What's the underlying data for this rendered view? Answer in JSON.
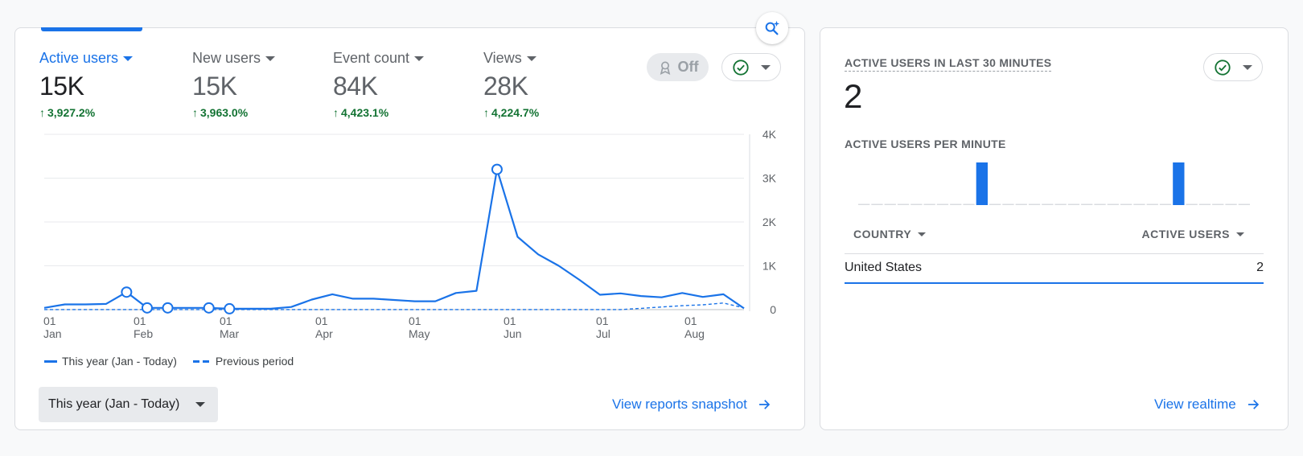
{
  "metrics": [
    {
      "label": "Active users",
      "value": "15K",
      "change": "3,927.2%",
      "active": true
    },
    {
      "label": "New users",
      "value": "15K",
      "change": "3,963.0%",
      "active": false
    },
    {
      "label": "Event count",
      "value": "84K",
      "change": "4,423.1%",
      "active": false
    },
    {
      "label": "Views",
      "value": "28K",
      "change": "4,224.7%",
      "active": false
    }
  ],
  "controls": {
    "off_label": "Off",
    "date_range": "This year (Jan - Today)",
    "snapshot_link": "View reports snapshot"
  },
  "chart_data": {
    "type": "line",
    "x_tick_labels": [
      {
        "day": "01",
        "month": "Jan"
      },
      {
        "day": "01",
        "month": "Feb"
      },
      {
        "day": "01",
        "month": "Mar"
      },
      {
        "day": "01",
        "month": "Apr"
      },
      {
        "day": "01",
        "month": "May"
      },
      {
        "day": "01",
        "month": "Jun"
      },
      {
        "day": "01",
        "month": "Jul"
      },
      {
        "day": "01",
        "month": "Aug"
      }
    ],
    "y_tick_labels": [
      "0",
      "1K",
      "2K",
      "3K",
      "4K"
    ],
    "ylim": [
      0,
      4000
    ],
    "series": [
      {
        "name": "This year (Jan - Today)",
        "style": "solid",
        "values": [
          40,
          120,
          120,
          130,
          400,
          40,
          40,
          40,
          40,
          20,
          20,
          20,
          60,
          230,
          350,
          250,
          250,
          220,
          190,
          190,
          380,
          430,
          3200,
          1660,
          1260,
          1000,
          680,
          340,
          370,
          310,
          280,
          380,
          290,
          350,
          30
        ]
      },
      {
        "name": "Previous period",
        "style": "dashed",
        "values": [
          2,
          2,
          2,
          2,
          2,
          2,
          2,
          2,
          2,
          2,
          2,
          2,
          2,
          2,
          2,
          2,
          2,
          2,
          2,
          2,
          2,
          2,
          2,
          2,
          2,
          2,
          2,
          2,
          2,
          30,
          60,
          90,
          110,
          150,
          40
        ]
      }
    ],
    "markers": [
      4,
      5,
      6,
      8,
      9,
      22
    ],
    "grid": true,
    "legend_position": "bottom-left",
    "line_color": "#1a73e8"
  },
  "realtime": {
    "title": "ACTIVE USERS IN LAST 30 MINUTES",
    "value": "2",
    "per_minute_title": "ACTIVE USERS PER MINUTE",
    "per_minute_bars": {
      "values": [
        0,
        0,
        0,
        0,
        0,
        0,
        0,
        0,
        0,
        1,
        0,
        0,
        0,
        0,
        0,
        0,
        0,
        0,
        0,
        0,
        0,
        0,
        0,
        0,
        1,
        0,
        0,
        0,
        0,
        0
      ],
      "color": "#1a73e8"
    },
    "table": {
      "col1": "COUNTRY",
      "col2": "ACTIVE USERS",
      "rows": [
        {
          "country": "United States",
          "users": "2"
        }
      ]
    },
    "link": "View realtime"
  },
  "icons": {
    "insights": "insights-sparkle-icon",
    "comparison": "ribbon-comparison-icon",
    "check": "check-circle-icon",
    "arrow": "arrow-right-icon"
  }
}
